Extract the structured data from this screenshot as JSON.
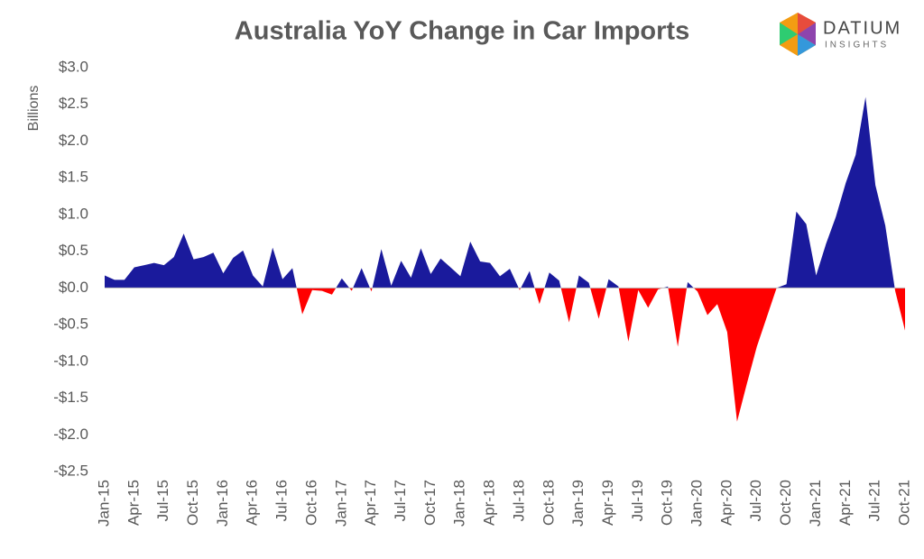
{
  "chart_data": {
    "type": "area",
    "title": "Australia YoY Change in Car Imports",
    "y_label": "Billions",
    "categories": [
      "Jan-15",
      null,
      null,
      "Apr-15",
      null,
      null,
      "Jul-15",
      null,
      null,
      "Oct-15",
      null,
      null,
      "Jan-16",
      null,
      null,
      "Apr-16",
      null,
      null,
      "Jul-16",
      null,
      null,
      "Oct-16",
      null,
      null,
      "Jan-17",
      null,
      null,
      "Apr-17",
      null,
      null,
      "Jul-17",
      null,
      null,
      "Oct-17",
      null,
      null,
      "Jan-18",
      null,
      null,
      "Apr-18",
      null,
      null,
      "Jul-18",
      null,
      null,
      "Oct-18",
      null,
      null,
      "Jan-19",
      null,
      null,
      "Apr-19",
      null,
      null,
      "Jul-19",
      null,
      null,
      "Oct-19",
      null,
      null,
      "Jan-20",
      null,
      null,
      "Apr-20",
      null,
      null,
      "Jul-20",
      null,
      null,
      "Oct-20",
      null,
      null,
      "Jan-21",
      null,
      null,
      "Apr-21",
      null,
      null,
      "Jul-21",
      null,
      null,
      "Oct-21"
    ],
    "values": [
      0.17,
      0.11,
      0.11,
      0.28,
      0.31,
      0.34,
      0.31,
      0.42,
      0.74,
      0.39,
      0.42,
      0.48,
      0.2,
      0.41,
      0.51,
      0.17,
      0.02,
      0.55,
      0.12,
      0.27,
      -0.36,
      -0.03,
      -0.04,
      -0.09,
      0.13,
      -0.04,
      0.27,
      -0.05,
      0.53,
      0.03,
      0.37,
      0.14,
      0.54,
      0.19,
      0.4,
      0.28,
      0.16,
      0.63,
      0.36,
      0.34,
      0.16,
      0.26,
      -0.03,
      0.23,
      -0.22,
      0.21,
      0.1,
      -0.47,
      0.17,
      0.07,
      -0.42,
      0.12,
      0.02,
      -0.73,
      -0.03,
      -0.27,
      -0.02,
      0.02,
      -0.8,
      0.08,
      -0.05,
      -0.37,
      -0.22,
      -0.6,
      -1.82,
      -1.3,
      -0.8,
      -0.4,
      0,
      0.05,
      1.04,
      0.87,
      0.17,
      0.6,
      0.97,
      1.43,
      1.81,
      2.6,
      1.4,
      0.85,
      -0.04,
      -0.58
    ],
    "positive_color": "#1a1a9c",
    "negative_color": "#ff0000",
    "ylim": [
      -2.5,
      3.0
    ],
    "yticks": [
      {
        "value": 3,
        "label": "$3.0"
      },
      {
        "value": 2.5,
        "label": "$2.5"
      },
      {
        "value": 2,
        "label": "$2.0"
      },
      {
        "value": 1.5,
        "label": "$1.5"
      },
      {
        "value": 1,
        "label": "$1.0"
      },
      {
        "value": 0.5,
        "label": "$0.5"
      },
      {
        "value": 0,
        "label": "$0.0"
      },
      {
        "value": -0.5,
        "label": "-$0.5"
      },
      {
        "value": -1,
        "label": "-$1.0"
      },
      {
        "value": -1.5,
        "label": "-$1.5"
      },
      {
        "value": -2,
        "label": "-$2.0"
      },
      {
        "value": -2.5,
        "label": "-$2.5"
      }
    ],
    "grid": false
  },
  "logo": {
    "name": "DATIUM",
    "tagline": "INSIGHTS"
  }
}
